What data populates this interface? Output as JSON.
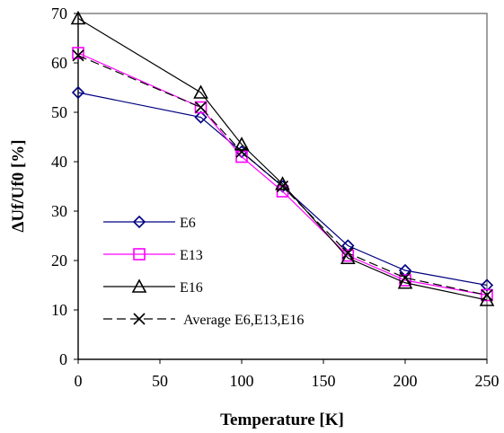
{
  "chart_data": {
    "type": "line",
    "xlabel": "Temperature [K]",
    "ylabel": "ΔUf/Uf0 [%]",
    "xlim": [
      0,
      250
    ],
    "ylim": [
      0,
      70
    ],
    "x_ticks": [
      "0",
      "50",
      "100",
      "150",
      "200",
      "250"
    ],
    "y_ticks": [
      "0",
      "10",
      "20",
      "30",
      "40",
      "50",
      "60",
      "70"
    ],
    "x": [
      0,
      75,
      100,
      125,
      165,
      200,
      250
    ],
    "grid": false,
    "legend_position": "lower-left",
    "series": [
      {
        "name": "E6",
        "values": [
          54,
          49,
          42,
          35,
          23,
          18,
          15
        ],
        "color": "#000080",
        "marker": "diamond",
        "dash": false
      },
      {
        "name": "E13",
        "values": [
          62,
          51,
          41,
          34,
          21,
          16,
          13
        ],
        "color": "#ff00ff",
        "marker": "square",
        "dash": false
      },
      {
        "name": "E16",
        "values": [
          69,
          54,
          43.5,
          35.5,
          20.5,
          15.5,
          12
        ],
        "color": "#000000",
        "marker": "triangle",
        "dash": false
      },
      {
        "name": "Average E6,E13,E16",
        "values": [
          61.5,
          51,
          42,
          35,
          21.5,
          16.5,
          13
        ],
        "color": "#000000",
        "marker": "x",
        "dash": true
      }
    ]
  }
}
